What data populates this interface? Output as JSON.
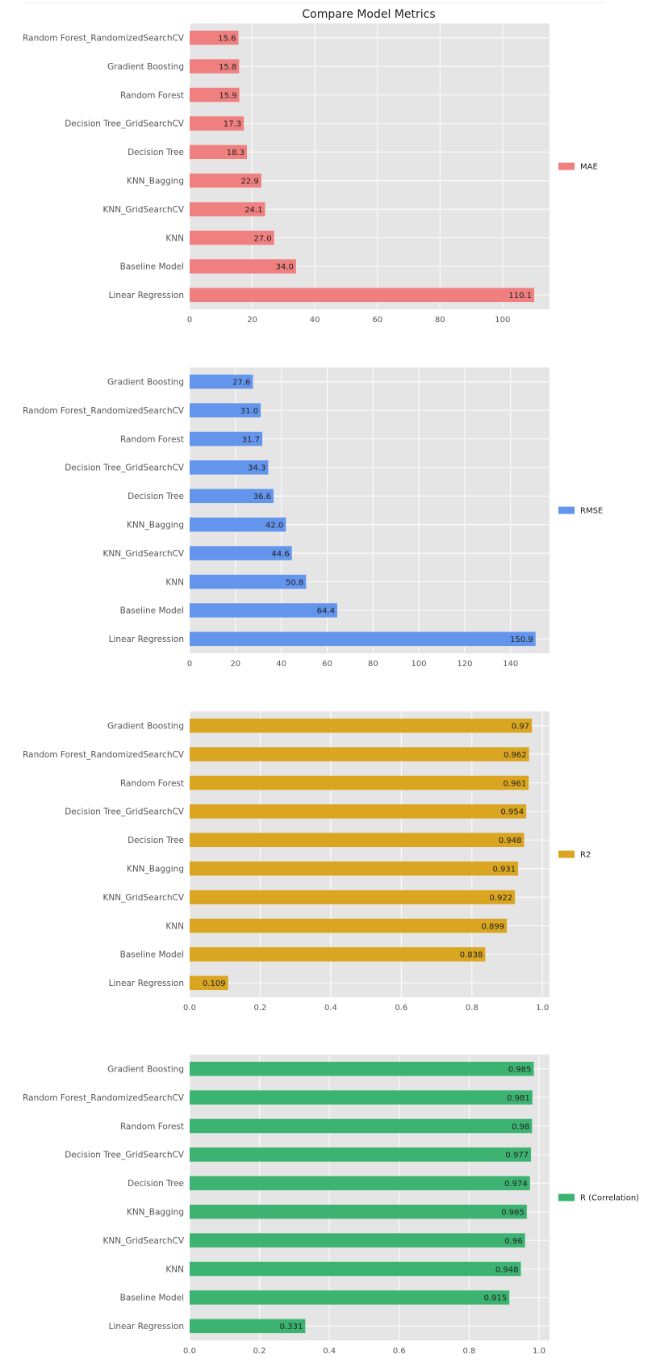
{
  "title": "Compare Model Metrics",
  "chart_data": [
    {
      "type": "bar",
      "orientation": "horizontal",
      "grid": true,
      "legend": "right",
      "xlim": [
        0,
        115
      ],
      "xticks": [
        0,
        20,
        40,
        60,
        80,
        100
      ],
      "categories": [
        "Random Forest_RandomizedSearchCV",
        "Gradient Boosting",
        "Random Forest",
        "Decision Tree_GridSearchCV",
        "Decision Tree",
        "KNN_Bagging",
        "KNN_GridSearchCV",
        "KNN",
        "Baseline Model",
        "Linear Regression"
      ],
      "series": [
        {
          "name": "MAE",
          "color": "#f08080",
          "values": [
            15.6,
            15.8,
            15.9,
            17.3,
            18.3,
            22.9,
            24.1,
            27.0,
            34.0,
            110.1
          ]
        }
      ],
      "value_labels": [
        "15.6",
        "15.8",
        "15.9",
        "17.3",
        "18.3",
        "22.9",
        "24.1",
        "27.0",
        "34.0",
        "110.1"
      ]
    },
    {
      "type": "bar",
      "orientation": "horizontal",
      "grid": true,
      "legend": "right",
      "xlim": [
        0,
        157
      ],
      "xticks": [
        0,
        20,
        40,
        60,
        80,
        100,
        120,
        140
      ],
      "categories": [
        "Gradient Boosting",
        "Random Forest_RandomizedSearchCV",
        "Random Forest",
        "Decision Tree_GridSearchCV",
        "Decision Tree",
        "KNN_Bagging",
        "KNN_GridSearchCV",
        "KNN",
        "Baseline Model",
        "Linear Regression"
      ],
      "series": [
        {
          "name": "RMSE",
          "color": "#6495ed",
          "values": [
            27.6,
            31.0,
            31.7,
            34.3,
            36.6,
            42.0,
            44.6,
            50.8,
            64.4,
            150.9
          ]
        }
      ],
      "value_labels": [
        "27.6",
        "31.0",
        "31.7",
        "34.3",
        "36.6",
        "42.0",
        "44.6",
        "50.8",
        "64.4",
        "150.9"
      ]
    },
    {
      "type": "bar",
      "orientation": "horizontal",
      "grid": true,
      "legend": "right",
      "xlim": [
        0,
        1.02
      ],
      "xticks": [
        0.0,
        0.2,
        0.4,
        0.6,
        0.8,
        1.0
      ],
      "xtick_labels": [
        "0.0",
        "0.2",
        "0.4",
        "0.6",
        "0.8",
        "1.0"
      ],
      "categories": [
        "Gradient Boosting",
        "Random Forest_RandomizedSearchCV",
        "Random Forest",
        "Decision Tree_GridSearchCV",
        "Decision Tree",
        "KNN_Bagging",
        "KNN_GridSearchCV",
        "KNN",
        "Baseline Model",
        "Linear Regression"
      ],
      "series": [
        {
          "name": "R2",
          "color": "#daa520",
          "values": [
            0.97,
            0.962,
            0.961,
            0.954,
            0.948,
            0.931,
            0.922,
            0.899,
            0.838,
            0.109
          ]
        }
      ],
      "value_labels": [
        "0.97",
        "0.962",
        "0.961",
        "0.954",
        "0.948",
        "0.931",
        "0.922",
        "0.899",
        "0.838",
        "0.109"
      ]
    },
    {
      "type": "bar",
      "orientation": "horizontal",
      "grid": true,
      "legend": "right",
      "xlim": [
        0,
        1.03
      ],
      "xticks": [
        0.0,
        0.2,
        0.4,
        0.6,
        0.8,
        1.0
      ],
      "xtick_labels": [
        "0.0",
        "0.2",
        "0.4",
        "0.6",
        "0.8",
        "1.0"
      ],
      "categories": [
        "Gradient Boosting",
        "Random Forest_RandomizedSearchCV",
        "Random Forest",
        "Decision Tree_GridSearchCV",
        "Decision Tree",
        "KNN_Bagging",
        "KNN_GridSearchCV",
        "KNN",
        "Baseline Model",
        "Linear Regression"
      ],
      "series": [
        {
          "name": "R (Correlation)",
          "color": "#3cb371",
          "values": [
            0.985,
            0.981,
            0.98,
            0.977,
            0.974,
            0.965,
            0.96,
            0.948,
            0.915,
            0.331
          ]
        }
      ],
      "value_labels": [
        "0.985",
        "0.981",
        "0.98",
        "0.977",
        "0.974",
        "0.965",
        "0.96",
        "0.948",
        "0.915",
        "0.331"
      ]
    }
  ]
}
